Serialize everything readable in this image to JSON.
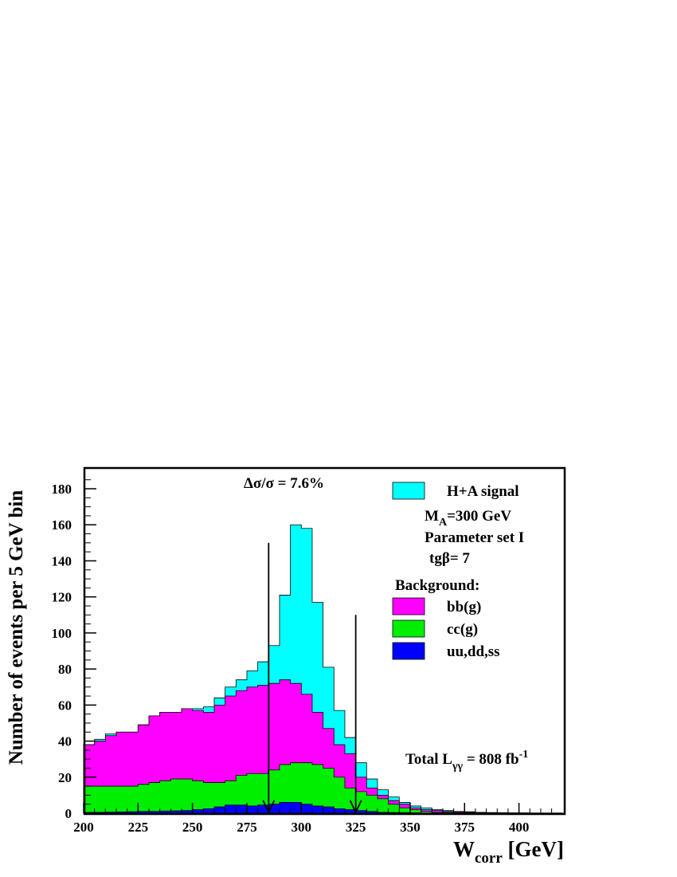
{
  "chart_data": {
    "type": "area",
    "xlim": [
      200,
      420
    ],
    "ylim": [
      0,
      190
    ],
    "bin_width": 5,
    "x_ticks": [
      200,
      225,
      250,
      275,
      300,
      325,
      350,
      375,
      400
    ],
    "y_ticks": [
      0,
      20,
      40,
      60,
      80,
      100,
      120,
      140,
      160,
      180
    ],
    "x_tick_labels": [
      "200",
      "225",
      "250",
      "275",
      "300",
      "325",
      "350",
      "375",
      "400"
    ],
    "y_tick_labels": [
      "0",
      "20",
      "40",
      "60",
      "80",
      "100",
      "120",
      "140",
      "160",
      "180"
    ],
    "xlabel_main": "W",
    "xlabel_sub": "corr",
    "xlabel_unit": " [GeV]",
    "ylabel": "Number of events per 5 GeV bin",
    "bin_edges": [
      200,
      205,
      210,
      215,
      220,
      225,
      230,
      235,
      240,
      245,
      250,
      255,
      260,
      265,
      270,
      275,
      280,
      285,
      290,
      295,
      300,
      305,
      310,
      315,
      320,
      325,
      330,
      335,
      340,
      345,
      350,
      355,
      360,
      365,
      370,
      375,
      380,
      385,
      390,
      395,
      400,
      405,
      410,
      415,
      420
    ],
    "series": [
      {
        "name": "uu,dd,ss",
        "color": "#0000ff",
        "values": [
          0.5,
          0.5,
          0.6,
          0.7,
          0.8,
          1,
          1,
          1.2,
          1.3,
          1.5,
          2,
          2.5,
          3.5,
          4.5,
          4.5,
          4,
          4.5,
          5,
          6,
          6,
          5,
          4,
          3.5,
          2.5,
          2,
          1.5,
          1,
          0.5,
          0.4,
          0.3,
          0.2,
          0.1,
          0.1,
          0.1,
          0.1,
          0.1,
          0,
          0,
          0,
          0,
          0,
          0,
          0,
          0
        ]
      },
      {
        "name": "cc(g)",
        "color": "#00ee00",
        "values": [
          15,
          15,
          15,
          15,
          15,
          16,
          17,
          18,
          19,
          19,
          18,
          17,
          17,
          18,
          21,
          22,
          22,
          24,
          27,
          28,
          28,
          27,
          25,
          20,
          14,
          12,
          10,
          8,
          5,
          3,
          2,
          1,
          0.5,
          0.5,
          0.3,
          0.2,
          0.1,
          0.1,
          0.1,
          0.1,
          0,
          0,
          0,
          0
        ]
      },
      {
        "name": "bb(g)",
        "color": "#ff00ff",
        "values": [
          38,
          40,
          43,
          45,
          45,
          49,
          54,
          56,
          56,
          58,
          57,
          56,
          60,
          65,
          68,
          70,
          71,
          72,
          74,
          72,
          66,
          56,
          47,
          38,
          33,
          20,
          14,
          10,
          7,
          5,
          3,
          2,
          1.5,
          1,
          0.8,
          0.5,
          0.3,
          0.2,
          0.2,
          0.1,
          0.1,
          0.1,
          0.1,
          0.1
        ]
      },
      {
        "name": "H+A signal",
        "color": "#00ffff",
        "values": [
          38,
          41,
          44,
          45,
          45,
          49,
          54,
          56,
          56,
          58,
          58,
          59,
          64,
          70,
          74,
          79,
          84,
          93,
          121,
          160,
          158,
          117,
          81,
          57,
          42,
          28,
          19,
          13,
          9,
          6,
          4,
          3,
          2,
          1.5,
          1,
          0.8,
          0.5,
          0.4,
          0.3,
          0.2,
          0.2,
          0.1,
          0.1,
          0.1
        ]
      }
    ],
    "arrows": [
      {
        "x": 285,
        "y_top": 150,
        "y_bottom": 0
      },
      {
        "x": 325,
        "y_top": 110,
        "y_bottom": 0
      }
    ],
    "annotations": {
      "delta": "Δσ/σ = 7.6%",
      "ma_main": "M",
      "ma_sub": "A",
      "ma_rest": "=300 GeV",
      "param_set": "Parameter set I",
      "tgb": "tgβ= 7",
      "background": "Background:",
      "lumi_main": "Total L",
      "lumi_sub": "γγ",
      "lumi_rest": " = 808 fb",
      "lumi_sup": "-1"
    },
    "legend": [
      {
        "label": "H+A signal",
        "color": "#00ffff"
      },
      {
        "label": "bb(g)",
        "color": "#ff00ff"
      },
      {
        "label": "cc(g)",
        "color": "#00ee00"
      },
      {
        "label": "uu,dd,ss",
        "color": "#0000ff"
      }
    ]
  }
}
